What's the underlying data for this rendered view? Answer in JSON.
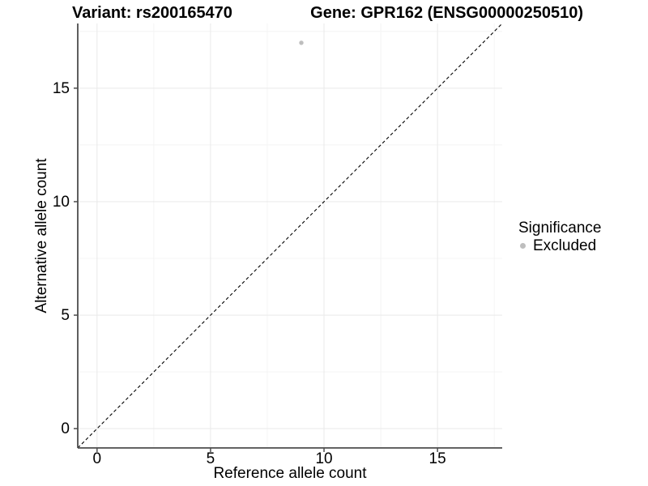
{
  "figure": {
    "title_left": "Variant: rs200165470",
    "title_right": "Gene: GPR162 (ENSG00000250510)"
  },
  "chart_data": {
    "type": "scatter",
    "title": "Variant: rs200165470    Gene: GPR162 (ENSG00000250510)",
    "xlabel": "Reference allele count",
    "ylabel": "Alternative allele count",
    "xlim": [
      -0.85,
      17.85
    ],
    "ylim": [
      -0.85,
      17.85
    ],
    "x_ticks": [
      0,
      5,
      10,
      15
    ],
    "y_ticks": [
      0,
      5,
      10,
      15
    ],
    "x_minor_ticks": [
      2.5,
      7.5,
      12.5,
      17.5
    ],
    "y_minor_ticks": [
      2.5,
      7.5,
      12.5,
      17.5
    ],
    "grid": "major and minor, light gray on white",
    "series": [
      {
        "name": "Excluded",
        "color": "#bebebe",
        "points": [
          {
            "x": 9,
            "y": 17
          }
        ]
      }
    ],
    "reference_line": {
      "kind": "identity y=x",
      "style": "dashed",
      "color": "#000000"
    },
    "legend": {
      "title": "Significance",
      "position": "right",
      "items": [
        {
          "label": "Excluded",
          "color": "#bebebe"
        }
      ]
    },
    "style_colors": {
      "background": "#ffffff",
      "axis_line": "#4d4d4d",
      "major_grid": "#e9e9e9",
      "minor_grid": "#f4f4f4",
      "tick_text": "#000000"
    }
  }
}
